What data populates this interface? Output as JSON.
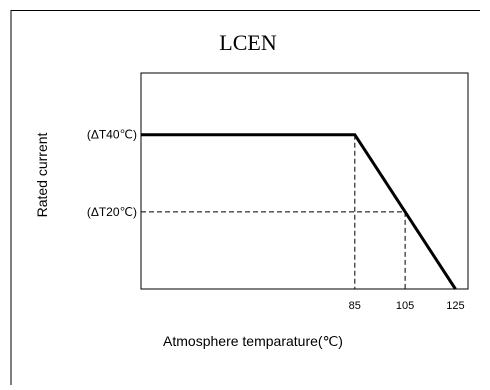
{
  "chart_data": {
    "type": "line",
    "title": "LCEN",
    "xlabel": "Atmosphere temparature(℃)",
    "ylabel": "Rated current",
    "x_ticks": [
      {
        "value": 85,
        "label": "85"
      },
      {
        "value": 105,
        "label": "105"
      },
      {
        "value": 125,
        "label": "125"
      }
    ],
    "y_ticks": [
      {
        "value": 1.0,
        "label": "(ΔT40℃)"
      },
      {
        "value": 0.5,
        "label": "(ΔT20℃)"
      }
    ],
    "xlim": [
      0,
      130
    ],
    "ylim": [
      0,
      1.4
    ],
    "series": [
      {
        "values": [
          {
            "x": 0,
            "y": 1.0
          },
          {
            "x": 85,
            "y": 1.0
          },
          {
            "x": 125,
            "y": 0
          }
        ]
      }
    ],
    "reference_lines": [
      {
        "from": [
          85,
          1.0
        ],
        "to": [
          85,
          0
        ]
      },
      {
        "from": [
          0,
          0.5
        ],
        "to": [
          105,
          0.5
        ]
      },
      {
        "from": [
          105,
          0.5
        ],
        "to": [
          105,
          0
        ]
      }
    ],
    "grid": false,
    "legend": "none"
  }
}
